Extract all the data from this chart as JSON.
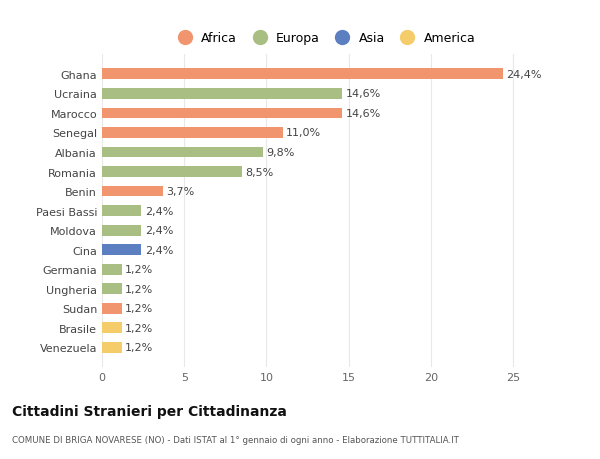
{
  "categories": [
    "Venezuela",
    "Brasile",
    "Sudan",
    "Ungheria",
    "Germania",
    "Cina",
    "Moldova",
    "Paesi Bassi",
    "Benin",
    "Romania",
    "Albania",
    "Senegal",
    "Marocco",
    "Ucraina",
    "Ghana"
  ],
  "values": [
    1.2,
    1.2,
    1.2,
    1.2,
    1.2,
    2.4,
    2.4,
    2.4,
    3.7,
    8.5,
    9.8,
    11.0,
    14.6,
    14.6,
    24.4
  ],
  "labels": [
    "1,2%",
    "1,2%",
    "1,2%",
    "1,2%",
    "1,2%",
    "2,4%",
    "2,4%",
    "2,4%",
    "3,7%",
    "8,5%",
    "9,8%",
    "11,0%",
    "14,6%",
    "14,6%",
    "24,4%"
  ],
  "colors": [
    "#f5cc6a",
    "#f5cc6a",
    "#f0956e",
    "#a8be82",
    "#a8be82",
    "#5b7fc0",
    "#a8be82",
    "#a8be82",
    "#f0956e",
    "#a8be82",
    "#a8be82",
    "#f0956e",
    "#f0956e",
    "#a8be82",
    "#f0956e"
  ],
  "legend": {
    "Africa": "#f0956e",
    "Europa": "#a8be82",
    "Asia": "#5b7fc0",
    "America": "#f5cc6a"
  },
  "title": "Cittadini Stranieri per Cittadinanza",
  "subtitle": "COMUNE DI BRIGA NOVARESE (NO) - Dati ISTAT al 1° gennaio di ogni anno - Elaborazione TUTTITALIA.IT",
  "xlim": [
    0,
    27
  ],
  "background_color": "#ffffff",
  "grid_color": "#e8e8e8",
  "label_fontsize": 8.0,
  "tick_fontsize": 8.0
}
